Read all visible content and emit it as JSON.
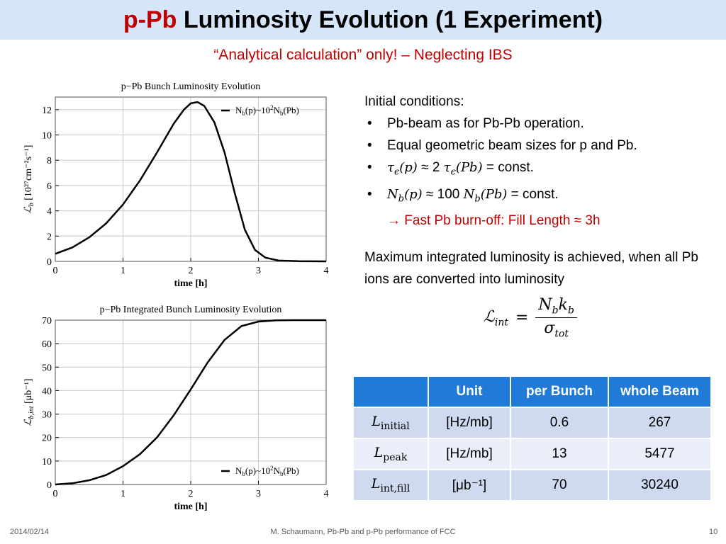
{
  "slide": {
    "title_highlight": "p-Pb",
    "title_rest": " Luminosity Evolution (1 Experiment)",
    "subtitle": "“Analytical calculation” only! – Neglecting IBS"
  },
  "text_panel": {
    "heading": "Initial conditions:",
    "bullet1": "Pb-beam as for Pb-Pb operation.",
    "bullet2": "Equal geometric beam sizes for p and Pb.",
    "bullet3": {
      "tau": "τ",
      "eps": "ϵ",
      "p_arg": "(p)",
      "approx": " ≈ 2 ",
      "pb_arg": "(Pb)",
      "suffix": " = const."
    },
    "bullet4": {
      "n": "N",
      "b": "b",
      "p_arg": "(p)",
      "approx": " ≈ 100 ",
      "pb_arg": "(Pb)",
      "suffix": " = const."
    },
    "red_line_a": "→ Fast Pb burn-off: Fill Length ",
    "red_line_b": "≈ 3h",
    "para": "Maximum integrated luminosity is achieved, when all Pb ions are converted into luminosity"
  },
  "formula": {
    "lhs": "ℒ",
    "lhs_sub": "int",
    "eq": "=",
    "num": "N",
    "num_sub1": "b",
    "num_k": "k",
    "num_sub2": "b",
    "den": "σ",
    "den_sub": "tot"
  },
  "table": {
    "headers": [
      "",
      "Unit",
      "per Bunch",
      "whole Beam"
    ],
    "rows": [
      {
        "sym": "L",
        "sub": "initial",
        "unit": "[Hz/mb]",
        "per_bunch": "0.6",
        "whole_beam": "267"
      },
      {
        "sym": "L",
        "sub": "peak",
        "unit": "[Hz/mb]",
        "per_bunch": "13",
        "whole_beam": "5477"
      },
      {
        "sym": "L",
        "sub": "int,fill",
        "unit": "[μb⁻¹]",
        "per_bunch": "70",
        "whole_beam": "30240"
      }
    ]
  },
  "footer": {
    "date": "2014/02/14",
    "author": "M. Schaumann, Pb-Pb and p-Pb performance of FCC",
    "page": "10"
  },
  "chart_data": [
    {
      "type": "line",
      "title": "p−Pb Bunch Luminosity Evolution",
      "xlabel": "time [h]",
      "ylabel": "ℒ",
      "ylabel_sub": "b",
      "ylabel_unit": " [10²⁷cm⁻²s⁻¹]",
      "xlim": [
        0,
        4
      ],
      "ylim": [
        0,
        13
      ],
      "xticks": [
        0,
        1,
        2,
        3,
        4
      ],
      "yticks": [
        0,
        2,
        4,
        6,
        8,
        10,
        12
      ],
      "grid": true,
      "legend_position": "top-right",
      "legend_label": "N",
      "legend_sub1": "b",
      "legend_mid": "(p)~10",
      "legend_sup": "2",
      "legend_n2": "N",
      "legend_sub2": "b",
      "legend_end": "(Pb)",
      "series": [
        {
          "x": [
            0,
            0.25,
            0.5,
            0.75,
            1.0,
            1.25,
            1.5,
            1.75,
            1.9,
            2.0,
            2.1,
            2.2,
            2.35,
            2.5,
            2.65,
            2.8,
            2.95,
            3.1,
            3.3,
            3.6,
            4.0
          ],
          "values": [
            0.6,
            1.1,
            1.9,
            3.0,
            4.5,
            6.4,
            8.6,
            10.9,
            12.0,
            12.5,
            12.6,
            12.3,
            11.0,
            8.6,
            5.4,
            2.5,
            0.9,
            0.3,
            0.06,
            0.01,
            0.0
          ]
        }
      ]
    },
    {
      "type": "line",
      "title": "p−Pb Integrated Bunch Luminosity Evolution",
      "xlabel": "time [h]",
      "ylabel": "ℒ",
      "ylabel_sub": "b,int",
      "ylabel_unit": " [μb⁻¹]",
      "xlim": [
        0,
        4
      ],
      "ylim": [
        0,
        70
      ],
      "xticks": [
        0,
        1,
        2,
        3,
        4
      ],
      "yticks": [
        0,
        10,
        20,
        30,
        40,
        50,
        60,
        70
      ],
      "grid": true,
      "legend_position": "bottom-right",
      "legend_label": "N",
      "legend_sub1": "b",
      "legend_mid": "(p)~10",
      "legend_sup": "2",
      "legend_n2": "N",
      "legend_sub2": "b",
      "legend_end": "(Pb)",
      "series": [
        {
          "x": [
            0,
            0.25,
            0.5,
            0.75,
            1.0,
            1.25,
            1.5,
            1.75,
            2.0,
            2.25,
            2.5,
            2.75,
            3.0,
            3.25,
            3.5,
            4.0
          ],
          "values": [
            0,
            0.5,
            1.8,
            4.0,
            7.8,
            12.9,
            20.0,
            29.5,
            40.5,
            52.0,
            61.6,
            67.5,
            69.4,
            69.9,
            70.0,
            70.0
          ]
        }
      ]
    }
  ]
}
